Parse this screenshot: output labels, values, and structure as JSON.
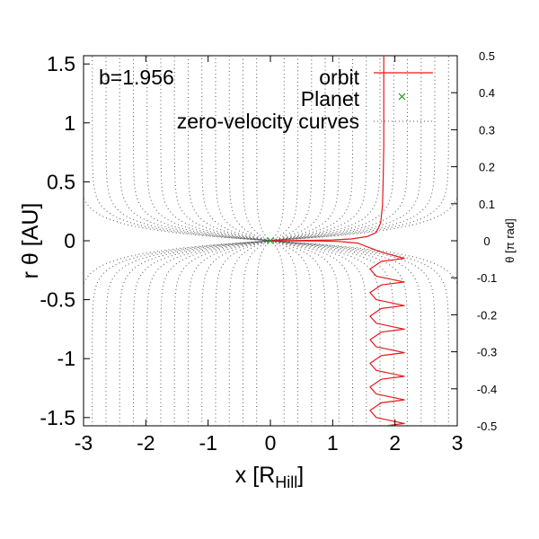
{
  "chart_data": {
    "type": "line",
    "annotation": "b=1.956",
    "xlabel": "x [R",
    "xlabel_sub": "Hill",
    "xlabel_end": "]",
    "ylabel": "r θ [AU]",
    "y2label": "θ [π rad]",
    "xlim": [
      -3,
      3
    ],
    "ylim": [
      -1.57,
      1.57
    ],
    "y2lim": [
      -0.5,
      0.5
    ],
    "xticks": [
      "-3",
      "-2",
      "-1",
      "0",
      "1",
      "2",
      "3"
    ],
    "yticks": [
      "-1.5",
      "-1",
      "-0.5",
      "0",
      "0.5",
      "1",
      "1.5"
    ],
    "y2ticks": [
      "-0.5",
      "-0.4",
      "-0.3",
      "-0.2",
      "-0.1",
      "0",
      "0.1",
      "0.2",
      "0.3",
      "0.4",
      "0.5"
    ],
    "legend_position": "top-right",
    "series": [
      {
        "name": "orbit",
        "style": "line",
        "color": "#e41a1c",
        "points": [
          [
            1.82,
            1.57
          ],
          [
            1.82,
            1.2
          ],
          [
            1.82,
            0.8
          ],
          [
            1.81,
            0.5
          ],
          [
            1.8,
            0.3
          ],
          [
            1.77,
            0.15
          ],
          [
            1.7,
            0.07
          ],
          [
            1.55,
            0.035
          ],
          [
            1.3,
            0.015
          ],
          [
            1.0,
            0.007
          ],
          [
            0.6,
            0.003
          ],
          [
            0.2,
            0.001
          ],
          [
            0.0,
            0.0
          ],
          [
            0.4,
            -0.001
          ],
          [
            0.8,
            -0.002
          ],
          [
            1.1,
            -0.006
          ],
          [
            1.4,
            -0.02
          ],
          [
            1.6,
            -0.06
          ],
          [
            1.8,
            -0.1
          ],
          [
            2.15,
            -0.15
          ],
          [
            1.78,
            -0.175
          ],
          [
            1.6,
            -0.24
          ],
          [
            1.7,
            -0.3
          ],
          [
            2.15,
            -0.35
          ],
          [
            1.78,
            -0.375
          ],
          [
            1.6,
            -0.44
          ],
          [
            1.7,
            -0.5
          ],
          [
            2.15,
            -0.55
          ],
          [
            1.78,
            -0.575
          ],
          [
            1.6,
            -0.64
          ],
          [
            1.7,
            -0.7
          ],
          [
            2.15,
            -0.75
          ],
          [
            1.78,
            -0.775
          ],
          [
            1.6,
            -0.84
          ],
          [
            1.7,
            -0.9
          ],
          [
            2.15,
            -0.95
          ],
          [
            1.78,
            -0.975
          ],
          [
            1.6,
            -1.04
          ],
          [
            1.7,
            -1.1
          ],
          [
            2.15,
            -1.15
          ],
          [
            1.78,
            -1.175
          ],
          [
            1.6,
            -1.24
          ],
          [
            1.7,
            -1.3
          ],
          [
            2.15,
            -1.35
          ],
          [
            1.78,
            -1.375
          ],
          [
            1.6,
            -1.44
          ],
          [
            1.7,
            -1.5
          ],
          [
            2.15,
            -1.55
          ],
          [
            1.85,
            -1.57
          ]
        ]
      },
      {
        "name": "Planet",
        "style": "point",
        "marker": "x",
        "color": "#1a9a1a",
        "points": [
          [
            0,
            0
          ]
        ]
      },
      {
        "name": "zero-velocity curves",
        "style": "dotted",
        "color": "#555555",
        "levels": [
          0.22,
          0.44,
          0.66,
          0.88,
          1.1,
          1.32,
          1.54,
          1.76,
          1.98,
          2.2,
          2.42,
          2.64,
          2.86,
          3.08
        ]
      }
    ],
    "grid": false
  }
}
